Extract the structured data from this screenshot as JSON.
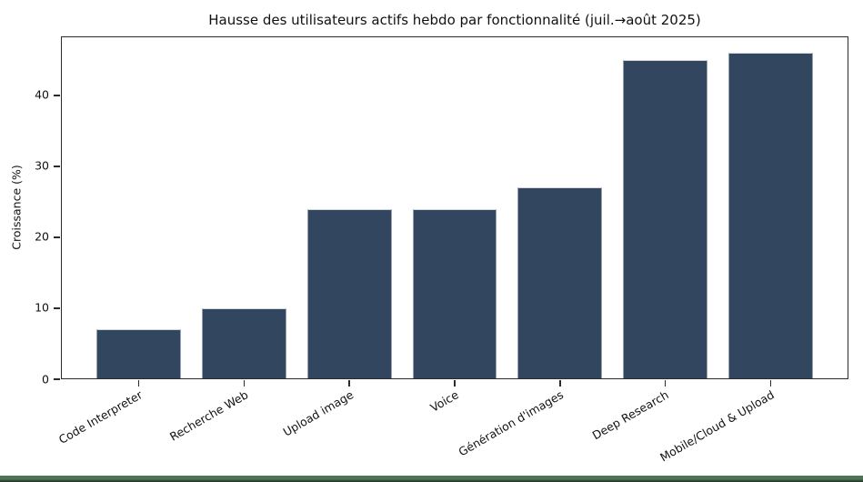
{
  "chart_data": {
    "type": "bar",
    "title": "Hausse des utilisateurs actifs hebdo par fonctionnalité (juil.→août 2025)",
    "xlabel": "",
    "ylabel": "Croissance (%)",
    "categories": [
      "Code Interpreter",
      "Recherche Web",
      "Upload image",
      "Voice",
      "Génération d'images",
      "Deep Research",
      "Mobile/Cloud & Upload"
    ],
    "values": [
      7,
      10,
      24,
      24,
      27,
      45,
      46
    ],
    "yticks": [
      0,
      10,
      20,
      30,
      40
    ],
    "ylim": [
      0,
      48.3
    ],
    "bar_width_fraction": 0.8,
    "x_margin_fraction": 0.05,
    "grid": false,
    "legend": null,
    "bar_color": "#32475f",
    "bar_edge_color": "#d3d7de",
    "spine_color": "#2b2b2b",
    "tick_label_rotation_deg": 30
  },
  "footer": {
    "band_color_top": "#4c7356",
    "band_color_bottom": "#1d2b21"
  }
}
